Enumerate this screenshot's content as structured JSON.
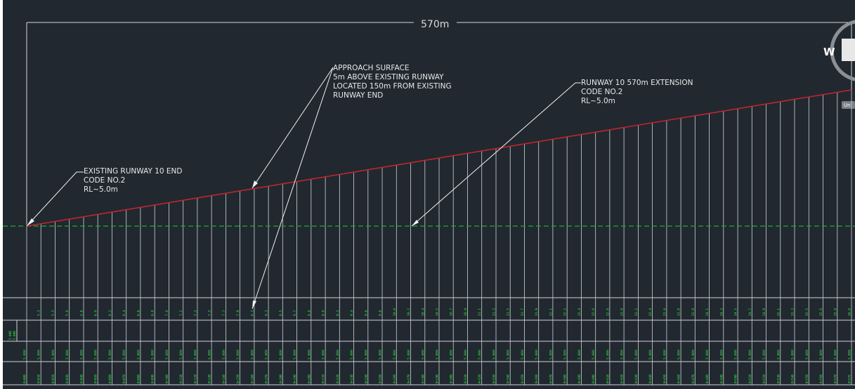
{
  "dimension": {
    "label": "570m"
  },
  "annotations": {
    "existing_end": [
      "EXISTING RUNWAY 10 END",
      "CODE NO.2",
      "RL~5.0m"
    ],
    "approach": [
      "APPROACH SURFACE",
      "5m ABOVE EXISTING RUNWAY",
      "LOCATED 150m FROM EXISTING",
      "RUNWAY END"
    ],
    "extension": [
      "RUNWAY 10 570m EXTENSION",
      "CODE NO.2",
      "RL~5.0m"
    ]
  },
  "compass": {
    "letter": "W",
    "tag": "Un"
  },
  "colors": {
    "background": "#212830",
    "approach_line": "#c0262c",
    "datum_line": "#1fae2a",
    "station_text": "#2cf23a",
    "linework": "#cfd3d6"
  },
  "table": {
    "row1_values": [
      "5.1",
      "5.3",
      "5.5",
      "5.6",
      "5.8",
      "6.0",
      "6.2",
      "6.4",
      "6.6",
      "6.8",
      "7.0",
      "7.1",
      "7.3",
      "7.5",
      "7.7",
      "7.9",
      "8.1",
      "8.3",
      "8.5",
      "8.7",
      "8.8",
      "9.0",
      "9.2",
      "9.4",
      "9.6",
      "9.8",
      "10.0",
      "10.2",
      "10.4",
      "10.5",
      "10.7",
      "10.9",
      "11.1",
      "11.3",
      "11.5",
      "11.7",
      "11.9",
      "12.1",
      "12.2",
      "12.4",
      "12.6",
      "12.8",
      "13.0",
      "13.2",
      "13.4",
      "13.6",
      "13.8",
      "13.9",
      "14.1",
      "14.3",
      "14.5",
      "14.7",
      "14.9",
      "15.1",
      "15.3",
      "15.5",
      "15.6",
      "15.8",
      "16.0"
    ],
    "row2_values": [
      "5.000",
      "5.000"
    ],
    "row3_value": "5.000",
    "row4_values": [
      "0+000",
      "0+010",
      "0+020",
      "0+030",
      "0+040",
      "0+050",
      "0+060",
      "0+070",
      "0+080",
      "0+090",
      "0+100",
      "0+110",
      "0+120",
      "0+130",
      "0+140",
      "0+150",
      "0+160",
      "0+170",
      "0+180",
      "0+190",
      "0+200",
      "0+210",
      "0+220",
      "0+230",
      "0+240",
      "0+250",
      "0+260",
      "0+270",
      "0+280",
      "0+290",
      "0+300",
      "0+310",
      "0+320",
      "0+330",
      "0+340",
      "0+350",
      "0+360",
      "0+370",
      "0+380",
      "0+390",
      "0+400",
      "0+410",
      "0+420",
      "0+430",
      "0+440",
      "0+450",
      "0+460",
      "0+470",
      "0+480",
      "0+490",
      "0+500",
      "0+510",
      "0+520",
      "0+530",
      "0+540",
      "0+550",
      "0+560",
      "0+570",
      "0+575"
    ]
  }
}
